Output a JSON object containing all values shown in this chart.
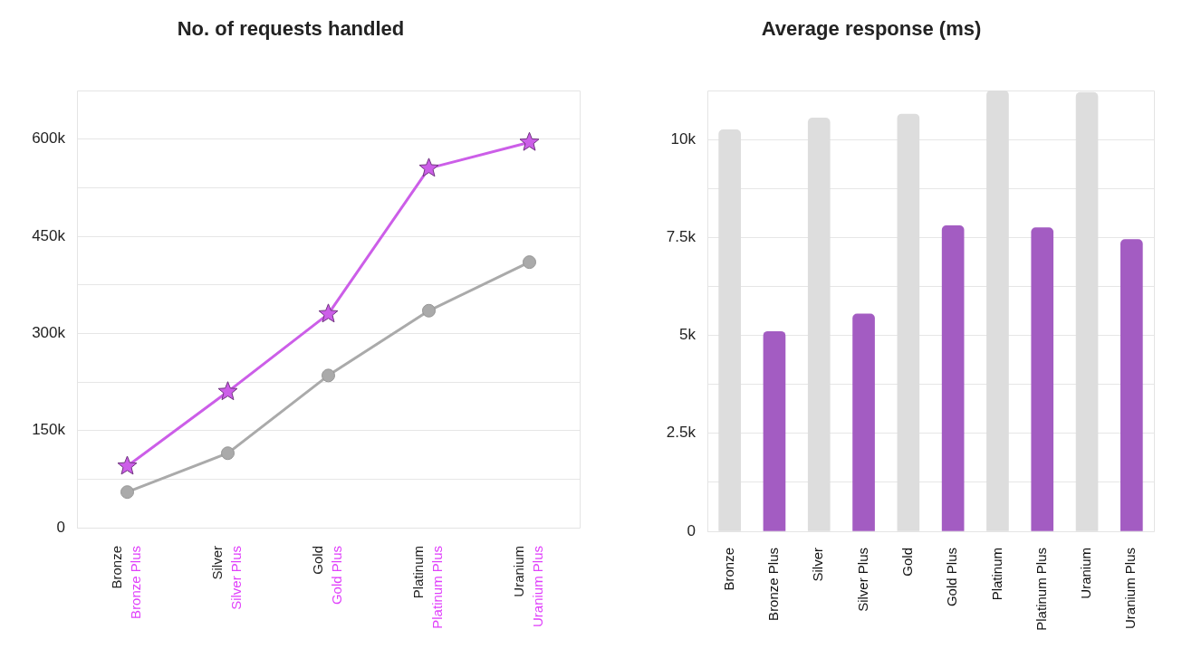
{
  "chart_data": [
    {
      "type": "line",
      "title": "No. of requests handled",
      "categories": [
        "Bronze\nBronze Plus",
        "Silver\nSilver Plus",
        "Gold\nGold Plus",
        "Platinum\nPlatinum Plus",
        "Uranium\nUranium Plus"
      ],
      "series": [
        {
          "color": "#aaaaaa",
          "marker": "circle",
          "values": [
            55000,
            115000,
            235000,
            335000,
            410000
          ]
        },
        {
          "color": "#cc5ee8",
          "marker": "star",
          "values": [
            95000,
            210000,
            330000,
            555000,
            595000
          ]
        }
      ],
      "ylim": [
        0,
        675000
      ],
      "yticks": [
        0,
        {
          "value": 75000,
          "label": null
        },
        {
          "value": 150000,
          "label": "150k"
        },
        {
          "value": 225000,
          "label": null
        },
        {
          "value": 300000,
          "label": "300k"
        },
        {
          "value": 375000,
          "label": null
        },
        {
          "value": 450000,
          "label": "450k"
        },
        {
          "value": 525000,
          "label": null
        },
        {
          "value": 600000,
          "label": "600k"
        }
      ],
      "grid": "y",
      "legend": false
    },
    {
      "type": "bar",
      "title": "Average response (ms)",
      "categories": [
        "Bronze",
        "Bronze Plus",
        "Silver",
        "Silver Plus",
        "Gold",
        "Gold Plus",
        "Platinum",
        "Platinum Plus",
        "Uranium",
        "Uranium Plus"
      ],
      "values": [
        10250,
        5100,
        10550,
        5550,
        10650,
        7800,
        11250,
        7750,
        11200,
        7450
      ],
      "colors": [
        "#dddddd",
        "#a35cc2",
        "#dddddd",
        "#a35cc2",
        "#dddddd",
        "#a35cc2",
        "#dddddd",
        "#a35cc2",
        "#dddddd",
        "#a35cc2"
      ],
      "ylim": [
        0,
        11250
      ],
      "yticks": [
        0,
        {
          "value": 1250,
          "label": null
        },
        {
          "value": 2500,
          "label": "2.5k"
        },
        {
          "value": 3750,
          "label": null
        },
        {
          "value": 5000,
          "label": "5k"
        },
        {
          "value": 6250,
          "label": null
        },
        {
          "value": 7500,
          "label": "7.5k"
        },
        {
          "value": 8750,
          "label": null
        },
        {
          "value": 10000,
          "label": "10k"
        }
      ],
      "grid": "y",
      "legend": false
    }
  ]
}
